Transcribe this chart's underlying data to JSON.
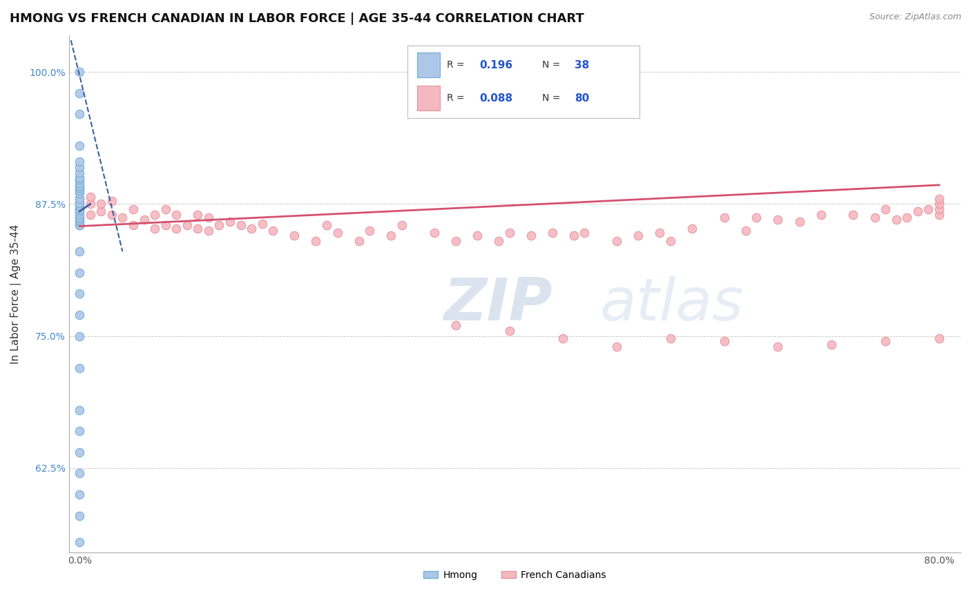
{
  "title": "HMONG VS FRENCH CANADIAN IN LABOR FORCE | AGE 35-44 CORRELATION CHART",
  "source": "Source: ZipAtlas.com",
  "ylabel": "In Labor Force | Age 35-44",
  "watermark_zip": "ZIP",
  "watermark_atlas": "atlas",
  "xlim": [
    -0.01,
    0.82
  ],
  "ylim": [
    0.545,
    1.035
  ],
  "xticks": [
    0.0,
    0.1,
    0.2,
    0.3,
    0.4,
    0.5,
    0.6,
    0.7,
    0.8
  ],
  "xticklabels": [
    "0.0%",
    "",
    "",
    "",
    "",
    "",
    "",
    "",
    "80.0%"
  ],
  "yticks": [
    0.625,
    0.75,
    0.875,
    1.0
  ],
  "yticklabels": [
    "62.5%",
    "75.0%",
    "87.5%",
    "100.0%"
  ],
  "hmong_color": "#aec6e8",
  "french_color": "#f4b8c1",
  "hmong_edge": "#6baed6",
  "french_edge": "#e8909a",
  "trend_hmong_color": "#3a5fa0",
  "trend_french_color": "#d45070",
  "legend_R_hmong": "0.196",
  "legend_N_hmong": "38",
  "legend_R_french": "0.088",
  "legend_N_french": "80",
  "hmong_x": [
    0.0,
    0.0,
    0.0,
    0.0,
    0.0,
    0.0,
    0.0,
    0.0,
    0.0,
    0.0,
    0.0,
    0.0,
    0.0,
    0.0,
    0.0,
    0.0,
    0.0,
    0.0,
    0.0,
    0.0,
    0.0,
    0.0,
    0.0,
    0.0,
    0.0,
    0.0,
    0.0,
    0.0,
    0.0,
    0.0,
    0.0,
    0.0,
    0.0,
    0.0,
    0.0,
    0.0,
    0.0,
    0.0
  ],
  "hmong_y": [
    0.555,
    0.58,
    0.6,
    0.62,
    0.64,
    0.66,
    0.68,
    0.72,
    0.75,
    0.77,
    0.79,
    0.81,
    0.83,
    0.855,
    0.855,
    0.858,
    0.86,
    0.862,
    0.865,
    0.868,
    0.87,
    0.873,
    0.876,
    0.88,
    0.885,
    0.888,
    0.89,
    0.892,
    0.895,
    0.898,
    0.9,
    0.905,
    0.91,
    0.915,
    0.93,
    0.96,
    0.98,
    1.0
  ],
  "french_x": [
    0.0,
    0.0,
    0.0,
    0.01,
    0.01,
    0.01,
    0.02,
    0.02,
    0.03,
    0.03,
    0.04,
    0.05,
    0.05,
    0.06,
    0.07,
    0.07,
    0.08,
    0.08,
    0.09,
    0.09,
    0.1,
    0.11,
    0.11,
    0.12,
    0.12,
    0.13,
    0.14,
    0.15,
    0.16,
    0.17,
    0.18,
    0.2,
    0.22,
    0.23,
    0.24,
    0.26,
    0.27,
    0.29,
    0.3,
    0.33,
    0.35,
    0.37,
    0.39,
    0.4,
    0.42,
    0.44,
    0.46,
    0.47,
    0.5,
    0.52,
    0.54,
    0.55,
    0.57,
    0.6,
    0.62,
    0.63,
    0.65,
    0.67,
    0.69,
    0.72,
    0.74,
    0.75,
    0.76,
    0.77,
    0.78,
    0.79,
    0.8,
    0.8,
    0.8,
    0.8,
    0.35,
    0.4,
    0.45,
    0.5,
    0.55,
    0.6,
    0.65,
    0.7,
    0.75,
    0.8
  ],
  "french_y": [
    0.87,
    0.875,
    0.88,
    0.865,
    0.875,
    0.882,
    0.868,
    0.875,
    0.865,
    0.878,
    0.862,
    0.855,
    0.87,
    0.86,
    0.852,
    0.865,
    0.855,
    0.87,
    0.852,
    0.865,
    0.855,
    0.852,
    0.865,
    0.85,
    0.862,
    0.855,
    0.858,
    0.855,
    0.852,
    0.856,
    0.85,
    0.845,
    0.84,
    0.855,
    0.848,
    0.84,
    0.85,
    0.845,
    0.855,
    0.848,
    0.84,
    0.845,
    0.84,
    0.848,
    0.845,
    0.848,
    0.845,
    0.848,
    0.84,
    0.845,
    0.848,
    0.84,
    0.852,
    0.862,
    0.85,
    0.862,
    0.86,
    0.858,
    0.865,
    0.865,
    0.862,
    0.87,
    0.86,
    0.862,
    0.868,
    0.87,
    0.865,
    0.87,
    0.875,
    0.88,
    0.76,
    0.755,
    0.748,
    0.74,
    0.748,
    0.745,
    0.74,
    0.742,
    0.745,
    0.748
  ],
  "background_color": "#ffffff",
  "grid_color": "#bbbbbb",
  "title_fontsize": 13,
  "axis_fontsize": 11,
  "tick_fontsize": 10,
  "marker_size": 9
}
